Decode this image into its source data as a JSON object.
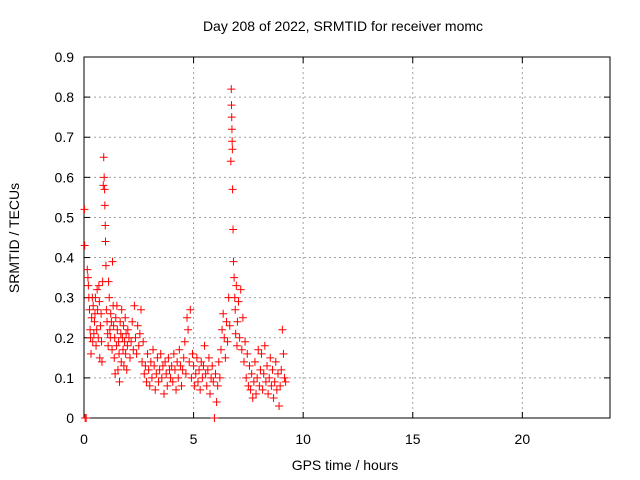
{
  "chart_data": {
    "type": "scatter",
    "title": "Day 208 of 2022, SRMTID for receiver momc",
    "xlabel": "GPS time / hours",
    "ylabel": "SRMTID / TECUs",
    "xlim": [
      0,
      24
    ],
    "ylim": [
      0,
      0.9
    ],
    "xticks": [
      0,
      5,
      10,
      15,
      20
    ],
    "yticks": [
      0,
      0.1,
      0.2,
      0.3,
      0.4,
      0.5,
      0.6,
      0.7,
      0.8,
      0.9
    ],
    "xtick_labels": [
      "0",
      "5",
      "10",
      "15",
      "20"
    ],
    "ytick_labels": [
      "0",
      "0.1",
      "0.2",
      "0.3",
      "0.4",
      "0.5",
      "0.6",
      "0.7",
      "0.8",
      "0.9"
    ],
    "grid": true,
    "marker": "+",
    "color": "#ff0000",
    "series": [
      {
        "name": "momc",
        "points": [
          [
            0.02,
            0.52
          ],
          [
            0.03,
            0.43
          ],
          [
            0.05,
            0.0
          ],
          [
            0.1,
            0.0
          ],
          [
            0.15,
            0.37
          ],
          [
            0.18,
            0.35
          ],
          [
            0.2,
            0.33
          ],
          [
            0.22,
            0.3
          ],
          [
            0.25,
            0.27
          ],
          [
            0.28,
            0.22
          ],
          [
            0.3,
            0.2
          ],
          [
            0.32,
            0.16
          ],
          [
            0.35,
            0.25
          ],
          [
            0.38,
            0.3
          ],
          [
            0.4,
            0.19
          ],
          [
            0.42,
            0.28
          ],
          [
            0.45,
            0.21
          ],
          [
            0.48,
            0.24
          ],
          [
            0.5,
            0.26
          ],
          [
            0.52,
            0.3
          ],
          [
            0.55,
            0.18
          ],
          [
            0.58,
            0.22
          ],
          [
            0.6,
            0.32
          ],
          [
            0.62,
            0.27
          ],
          [
            0.65,
            0.2
          ],
          [
            0.68,
            0.33
          ],
          [
            0.7,
            0.29
          ],
          [
            0.72,
            0.15
          ],
          [
            0.75,
            0.23
          ],
          [
            0.78,
            0.26
          ],
          [
            0.8,
            0.19
          ],
          [
            0.82,
            0.14
          ],
          [
            0.85,
            0.34
          ],
          [
            0.88,
            0.58
          ],
          [
            0.9,
            0.65
          ],
          [
            0.92,
            0.6
          ],
          [
            0.94,
            0.57
          ],
          [
            0.95,
            0.53
          ],
          [
            0.97,
            0.48
          ],
          [
            0.98,
            0.44
          ],
          [
            1.0,
            0.38
          ],
          [
            1.02,
            0.27
          ],
          [
            1.05,
            0.24
          ],
          [
            1.08,
            0.21
          ],
          [
            1.1,
            0.18
          ],
          [
            1.12,
            0.34
          ],
          [
            1.15,
            0.3
          ],
          [
            1.18,
            0.22
          ],
          [
            1.2,
            0.2
          ],
          [
            1.22,
            0.26
          ],
          [
            1.25,
            0.24
          ],
          [
            1.28,
            0.17
          ],
          [
            1.3,
            0.39
          ],
          [
            1.33,
            0.28
          ],
          [
            1.35,
            0.23
          ],
          [
            1.38,
            0.15
          ],
          [
            1.4,
            0.2
          ],
          [
            1.42,
            0.11
          ],
          [
            1.45,
            0.25
          ],
          [
            1.48,
            0.18
          ],
          [
            1.5,
            0.28
          ],
          [
            1.52,
            0.22
          ],
          [
            1.55,
            0.12
          ],
          [
            1.58,
            0.19
          ],
          [
            1.6,
            0.16
          ],
          [
            1.62,
            0.09
          ],
          [
            1.65,
            0.24
          ],
          [
            1.68,
            0.21
          ],
          [
            1.7,
            0.14
          ],
          [
            1.72,
            0.27
          ],
          [
            1.75,
            0.2
          ],
          [
            1.78,
            0.17
          ],
          [
            1.8,
            0.23
          ],
          [
            1.82,
            0.13
          ],
          [
            1.85,
            0.19
          ],
          [
            1.88,
            0.25
          ],
          [
            1.9,
            0.16
          ],
          [
            1.92,
            0.21
          ],
          [
            1.95,
            0.12
          ],
          [
            1.98,
            0.18
          ],
          [
            2.0,
            0.22
          ],
          [
            2.05,
            0.2
          ],
          [
            2.1,
            0.15
          ],
          [
            2.15,
            0.19
          ],
          [
            2.2,
            0.24
          ],
          [
            2.25,
            0.17
          ],
          [
            2.3,
            0.28
          ],
          [
            2.35,
            0.2
          ],
          [
            2.4,
            0.16
          ],
          [
            2.45,
            0.23
          ],
          [
            2.5,
            0.18
          ],
          [
            2.55,
            0.21
          ],
          [
            2.6,
            0.27
          ],
          [
            2.65,
            0.14
          ],
          [
            2.7,
            0.19
          ],
          [
            2.75,
            0.11
          ],
          [
            2.8,
            0.13
          ],
          [
            2.85,
            0.09
          ],
          [
            2.9,
            0.16
          ],
          [
            2.95,
            0.12
          ],
          [
            3.0,
            0.08
          ],
          [
            3.05,
            0.14
          ],
          [
            3.1,
            0.1
          ],
          [
            3.15,
            0.17
          ],
          [
            3.2,
            0.13
          ],
          [
            3.25,
            0.07
          ],
          [
            3.3,
            0.11
          ],
          [
            3.35,
            0.15
          ],
          [
            3.4,
            0.09
          ],
          [
            3.45,
            0.12
          ],
          [
            3.5,
            0.16
          ],
          [
            3.55,
            0.1
          ],
          [
            3.6,
            0.13
          ],
          [
            3.65,
            0.06
          ],
          [
            3.7,
            0.14
          ],
          [
            3.75,
            0.11
          ],
          [
            3.8,
            0.08
          ],
          [
            3.85,
            0.15
          ],
          [
            3.9,
            0.12
          ],
          [
            3.95,
            0.1
          ],
          [
            4.0,
            0.13
          ],
          [
            4.05,
            0.09
          ],
          [
            4.1,
            0.16
          ],
          [
            4.15,
            0.12
          ],
          [
            4.2,
            0.07
          ],
          [
            4.25,
            0.14
          ],
          [
            4.3,
            0.1
          ],
          [
            4.35,
            0.17
          ],
          [
            4.4,
            0.13
          ],
          [
            4.45,
            0.08
          ],
          [
            4.5,
            0.12
          ],
          [
            4.55,
            0.15
          ],
          [
            4.6,
            0.19
          ],
          [
            4.65,
            0.11
          ],
          [
            4.7,
            0.25
          ],
          [
            4.75,
            0.22
          ],
          [
            4.8,
            0.14
          ],
          [
            4.85,
            0.27
          ],
          [
            4.9,
            0.1
          ],
          [
            4.95,
            0.16
          ],
          [
            5.0,
            0.13
          ],
          [
            5.05,
            0.08
          ],
          [
            5.1,
            0.11
          ],
          [
            5.15,
            0.15
          ],
          [
            5.2,
            0.09
          ],
          [
            5.25,
            0.12
          ],
          [
            5.3,
            0.07
          ],
          [
            5.35,
            0.14
          ],
          [
            5.4,
            0.1
          ],
          [
            5.45,
            0.13
          ],
          [
            5.5,
            0.18
          ],
          [
            5.55,
            0.11
          ],
          [
            5.6,
            0.08
          ],
          [
            5.65,
            0.12
          ],
          [
            5.7,
            0.15
          ],
          [
            5.75,
            0.06
          ],
          [
            5.8,
            0.1
          ],
          [
            5.85,
            0.13
          ],
          [
            5.9,
            0.09
          ],
          [
            5.95,
            0.0
          ],
          [
            6.0,
            0.11
          ],
          [
            6.05,
            0.04
          ],
          [
            6.1,
            0.08
          ],
          [
            6.15,
            0.14
          ],
          [
            6.2,
            0.1
          ],
          [
            6.25,
            0.17
          ],
          [
            6.3,
            0.22
          ],
          [
            6.35,
            0.26
          ],
          [
            6.4,
            0.2
          ],
          [
            6.45,
            0.15
          ],
          [
            6.5,
            0.24
          ],
          [
            6.55,
            0.19
          ],
          [
            6.6,
            0.3
          ],
          [
            6.65,
            0.23
          ],
          [
            6.7,
            0.64
          ],
          [
            6.72,
            0.82
          ],
          [
            6.73,
            0.78
          ],
          [
            6.74,
            0.75
          ],
          [
            6.75,
            0.72
          ],
          [
            6.76,
            0.69
          ],
          [
            6.77,
            0.67
          ],
          [
            6.78,
            0.57
          ],
          [
            6.8,
            0.47
          ],
          [
            6.82,
            0.39
          ],
          [
            6.85,
            0.35
          ],
          [
            6.88,
            0.3
          ],
          [
            6.9,
            0.27
          ],
          [
            6.92,
            0.21
          ],
          [
            6.95,
            0.33
          ],
          [
            6.98,
            0.18
          ],
          [
            7.0,
            0.24
          ],
          [
            7.05,
            0.29
          ],
          [
            7.1,
            0.2
          ],
          [
            7.15,
            0.32
          ],
          [
            7.2,
            0.17
          ],
          [
            7.25,
            0.25
          ],
          [
            7.3,
            0.14
          ],
          [
            7.35,
            0.19
          ],
          [
            7.4,
            0.1
          ],
          [
            7.45,
            0.16
          ],
          [
            7.5,
            0.08
          ],
          [
            7.55,
            0.13
          ],
          [
            7.6,
            0.07
          ],
          [
            7.65,
            0.11
          ],
          [
            7.7,
            0.05
          ],
          [
            7.75,
            0.09
          ],
          [
            7.8,
            0.14
          ],
          [
            7.85,
            0.06
          ],
          [
            7.9,
            0.1
          ],
          [
            7.95,
            0.17
          ],
          [
            8.0,
            0.08
          ],
          [
            8.05,
            0.12
          ],
          [
            8.1,
            0.16
          ],
          [
            8.15,
            0.07
          ],
          [
            8.2,
            0.11
          ],
          [
            8.25,
            0.18
          ],
          [
            8.3,
            0.09
          ],
          [
            8.35,
            0.13
          ],
          [
            8.4,
            0.06
          ],
          [
            8.45,
            0.1
          ],
          [
            8.5,
            0.15
          ],
          [
            8.55,
            0.08
          ],
          [
            8.6,
            0.12
          ],
          [
            8.65,
            0.05
          ],
          [
            8.7,
            0.09
          ],
          [
            8.75,
            0.14
          ],
          [
            8.8,
            0.07
          ],
          [
            8.85,
            0.11
          ],
          [
            8.9,
            0.03
          ],
          [
            8.95,
            0.08
          ],
          [
            9.0,
            0.12
          ],
          [
            9.05,
            0.22
          ],
          [
            9.1,
            0.16
          ],
          [
            9.15,
            0.1
          ],
          [
            9.2,
            0.09
          ]
        ]
      }
    ]
  }
}
